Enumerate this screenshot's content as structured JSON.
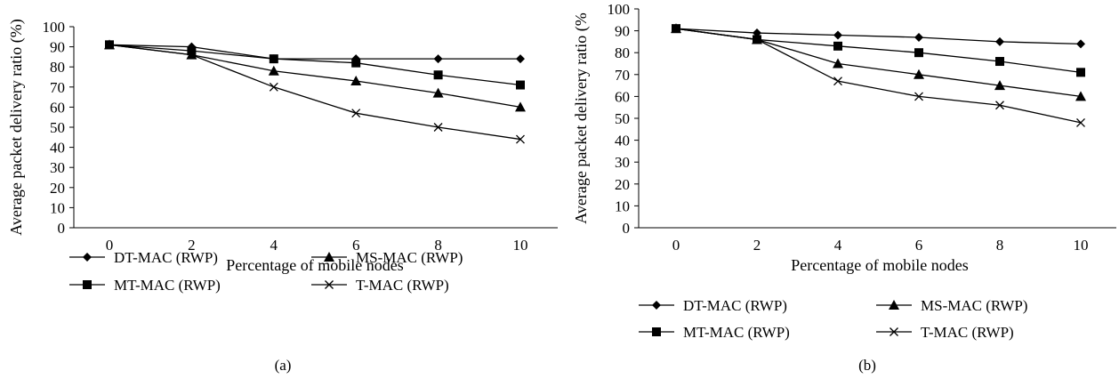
{
  "chart_data": [
    {
      "type": "line",
      "panel_label": "(a)",
      "xlabel": "Percentage of mobile nodes",
      "ylabel": "Average packet delivery ratio (%)",
      "categories": [
        "0",
        "2",
        "4",
        "6",
        "8",
        "10"
      ],
      "y_ticks": [
        "0",
        "10",
        "20",
        "30",
        "40",
        "50",
        "60",
        "70",
        "80",
        "90",
        "100"
      ],
      "ylim": [
        0,
        100
      ],
      "grid": false,
      "legend_position": "bottom",
      "series": [
        {
          "name": "DT-MAC (RWP)",
          "marker": "diamond",
          "values": [
            91,
            90,
            84,
            84,
            84,
            84
          ]
        },
        {
          "name": "MS-MAC (RWP)",
          "marker": "triangle",
          "values": [
            91,
            86,
            78,
            73,
            67,
            60
          ]
        },
        {
          "name": "MT-MAC (RWP)",
          "marker": "square",
          "values": [
            91,
            88,
            84,
            82,
            76,
            71
          ]
        },
        {
          "name": "T-MAC (RWP)",
          "marker": "x",
          "values": [
            91,
            86,
            70,
            57,
            50,
            44
          ]
        }
      ]
    },
    {
      "type": "line",
      "panel_label": "(b)",
      "xlabel": "Percentage of mobile nodes",
      "ylabel": "Average packet delivery ratio (%",
      "categories": [
        "0",
        "2",
        "4",
        "6",
        "8",
        "10"
      ],
      "y_ticks": [
        "0",
        "10",
        "20",
        "30",
        "40",
        "50",
        "60",
        "70",
        "80",
        "90",
        "100"
      ],
      "ylim": [
        0,
        100
      ],
      "grid": false,
      "legend_position": "bottom",
      "series": [
        {
          "name": "DT-MAC (RWP)",
          "marker": "diamond",
          "values": [
            91,
            89,
            88,
            87,
            85,
            84
          ]
        },
        {
          "name": "MS-MAC (RWP)",
          "marker": "triangle",
          "values": [
            91,
            86,
            75,
            70,
            65,
            60
          ]
        },
        {
          "name": "MT-MAC (RWP)",
          "marker": "square",
          "values": [
            91,
            86,
            83,
            80,
            76,
            71
          ]
        },
        {
          "name": "T-MAC (RWP)",
          "marker": "x",
          "values": [
            91,
            86,
            67,
            60,
            56,
            48
          ]
        }
      ]
    }
  ]
}
